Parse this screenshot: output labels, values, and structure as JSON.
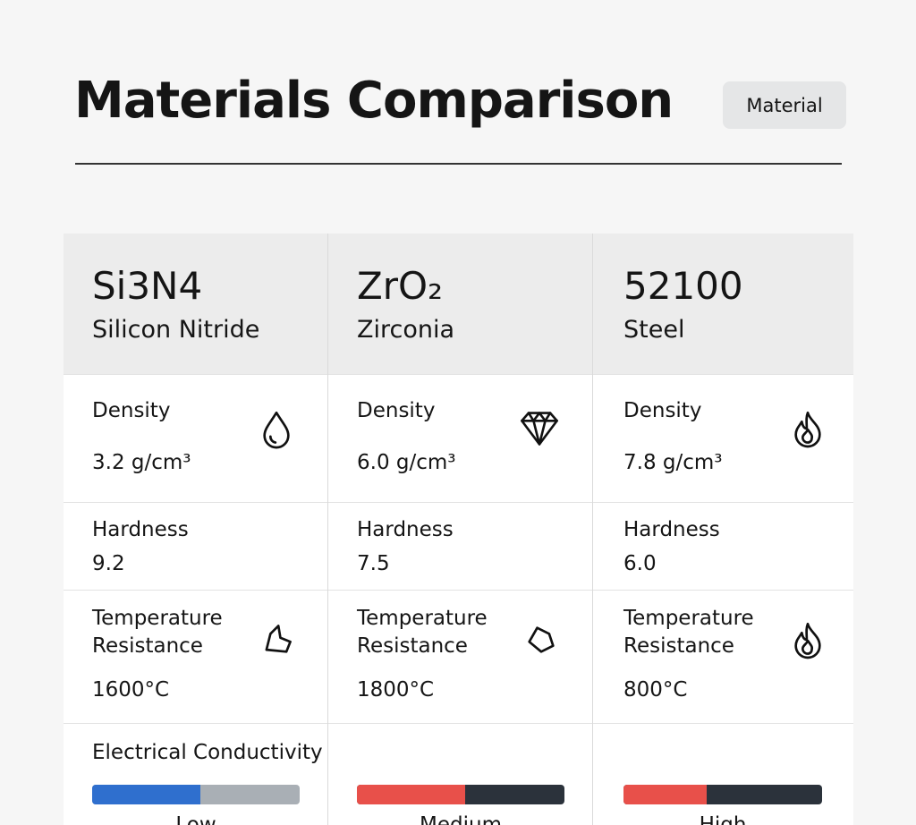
{
  "header": {
    "title": "Materials Comparison",
    "button": "Material"
  },
  "table": {
    "labels": {
      "density": "Density",
      "hardness": "Hardness",
      "temperature": "Temperature Resistance",
      "conductivity": "Electrical Conductivity"
    },
    "columns": [
      {
        "code": "Si3N4",
        "name": "Silicon Nitride",
        "density": "3.2 g/cm³",
        "hardness": "9.2",
        "temperature": "1600°C",
        "conductivity": "Low",
        "conductivity_level": 52,
        "bar_color": "#2f6fce",
        "track_color": "#a9afb5"
      },
      {
        "code": "ZrO₂",
        "name": "Zirconia",
        "density": "6.0 g/cm³",
        "hardness": "7.5",
        "temperature": "1800°C",
        "conductivity": "Medium",
        "conductivity_level": 52,
        "bar_color": "#e8504a",
        "track_color": "#2b323b"
      },
      {
        "code": "52100",
        "name": "Steel",
        "density": "7.8 g/cm³",
        "hardness": "6.0",
        "temperature": "800°C",
        "conductivity": "High",
        "conductivity_level": 42,
        "bar_color": "#e8504a",
        "track_color": "#2b323b"
      }
    ]
  }
}
